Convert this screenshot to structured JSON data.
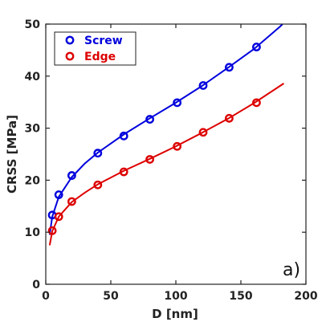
{
  "chart_data": {
    "type": "scatter",
    "xlabel": "D [nm]",
    "ylabel": "CRSS [MPa]",
    "xlim": [
      0,
      200
    ],
    "ylim": [
      0,
      50
    ],
    "xticks": [
      0,
      50,
      100,
      150,
      200
    ],
    "yticks": [
      0,
      10,
      20,
      30,
      40,
      50
    ],
    "panel_label": "a)",
    "legend_position": "top-left",
    "grid": false,
    "series": [
      {
        "name": "Screw",
        "color": "#0000dd",
        "marker": "open-circle",
        "x": [
          5,
          10,
          20,
          40,
          60,
          80,
          101,
          121,
          141,
          162
        ],
        "y": [
          13.3,
          17.2,
          20.9,
          25.2,
          28.5,
          31.7,
          34.9,
          38.2,
          41.7,
          45.6
        ],
        "fit_x": [
          3,
          5,
          10,
          20,
          30,
          40,
          60,
          80,
          100,
          120,
          140,
          160,
          180,
          182
        ],
        "fit_y": [
          9.5,
          13.0,
          16.8,
          20.6,
          23.2,
          25.3,
          28.8,
          31.9,
          34.9,
          38.1,
          41.6,
          45.2,
          49.5,
          50.0
        ]
      },
      {
        "name": "Edge",
        "color": "#dd0000",
        "marker": "open-circle",
        "x": [
          5,
          10,
          20,
          40,
          60,
          80,
          101,
          121,
          141,
          162
        ],
        "y": [
          10.3,
          13.0,
          15.9,
          19.1,
          21.6,
          24.0,
          26.5,
          29.2,
          31.9,
          34.9
        ],
        "fit_x": [
          3,
          5,
          10,
          20,
          30,
          40,
          60,
          80,
          100,
          120,
          140,
          160,
          183
        ],
        "fit_y": [
          7.5,
          10.2,
          13.0,
          15.8,
          17.6,
          19.2,
          21.8,
          24.1,
          26.5,
          29.1,
          31.8,
          34.8,
          38.6
        ]
      }
    ]
  }
}
